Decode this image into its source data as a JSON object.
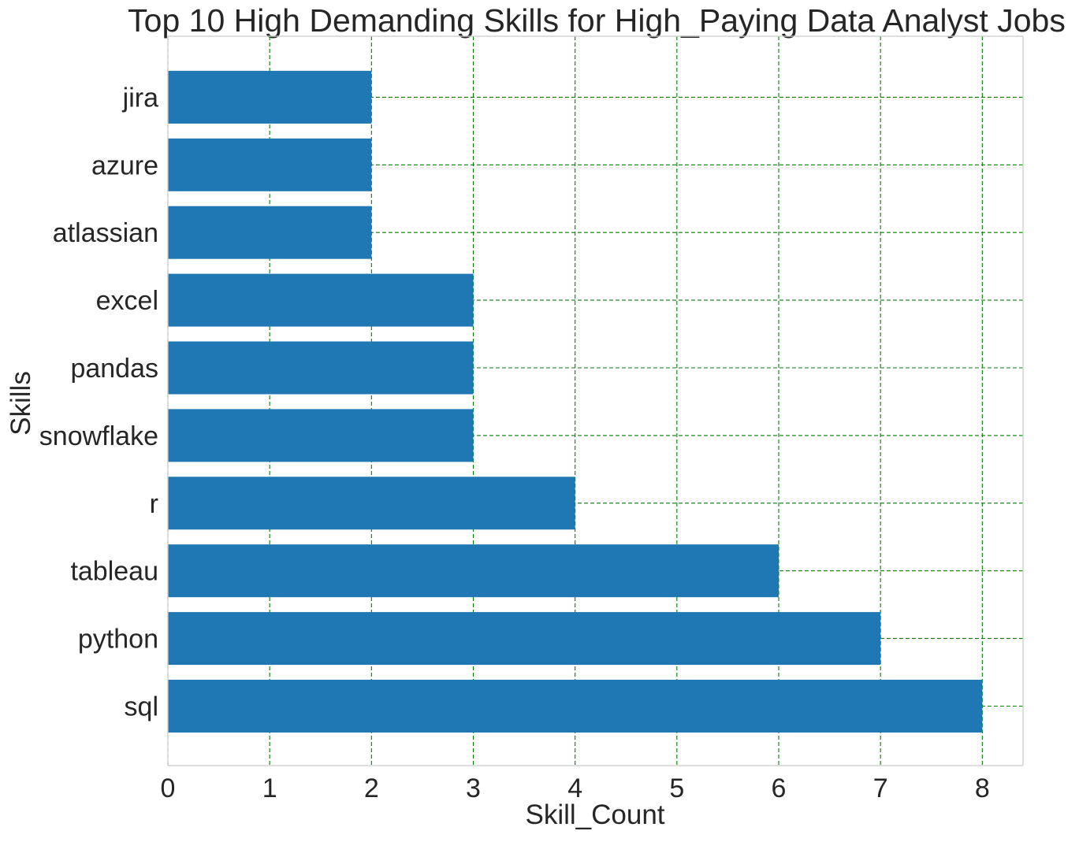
{
  "chart_data": {
    "type": "bar",
    "orientation": "horizontal",
    "title": "Top 10 High Demanding Skills for High_Paying Data Analyst Jobs",
    "xlabel": "Skill_Count",
    "ylabel": "Skills",
    "categories": [
      "sql",
      "python",
      "tableau",
      "r",
      "snowflake",
      "pandas",
      "excel",
      "atlassian",
      "azure",
      "jira"
    ],
    "values": [
      8,
      7,
      6,
      4,
      3,
      3,
      3,
      2,
      2,
      2
    ],
    "xlim": [
      0,
      8.4
    ],
    "xticks": [
      0,
      1,
      2,
      3,
      4,
      5,
      6,
      7,
      8
    ],
    "xtick_labels": [
      "0",
      "1",
      "2",
      "3",
      "4",
      "5",
      "6",
      "7",
      "8"
    ],
    "grid": true,
    "grid_color": "#008000",
    "grid_style": "dashed",
    "bar_color": "#1f77b4",
    "spine_color": "#cccccc",
    "text_color": "#262626"
  }
}
